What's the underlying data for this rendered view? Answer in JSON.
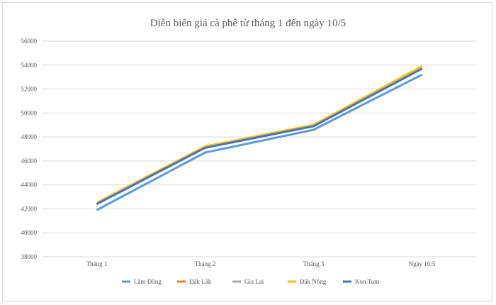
{
  "chart_data": {
    "type": "line",
    "title": "Diễn biến giá cà phê từ tháng 1 đến ngày 10/5",
    "categories": [
      "Tháng 1",
      "Tháng 2",
      "Tháng 3",
      "Ngày 10/5"
    ],
    "ylim": [
      38000,
      56000
    ],
    "yticks": [
      38000,
      40000,
      42000,
      44000,
      46000,
      48000,
      50000,
      52000,
      54000,
      56000
    ],
    "ytick_labels": [
      "38000",
      "40000",
      "42000",
      "44000",
      "46000",
      "48000",
      "50000",
      "52000",
      "54000",
      "56000"
    ],
    "grid": true,
    "legend_position": "bottom",
    "series": [
      {
        "name": "Lâm Đồng",
        "color": "#5b9bd5",
        "values": [
          41900,
          46700,
          48600,
          53200
        ]
      },
      {
        "name": "Đắk Lắk",
        "color": "#ed7d31",
        "values": [
          42500,
          47200,
          49000,
          53800
        ]
      },
      {
        "name": "Gia Lai",
        "color": "#a5a5a5",
        "values": [
          42400,
          47100,
          48900,
          53700
        ]
      },
      {
        "name": "Đắk Nông",
        "color": "#ffc000",
        "values": [
          42500,
          47200,
          49000,
          53900
        ]
      },
      {
        "name": "Kon Tum",
        "color": "#4472c4",
        "values": [
          42400,
          47100,
          48900,
          53700
        ]
      }
    ]
  }
}
